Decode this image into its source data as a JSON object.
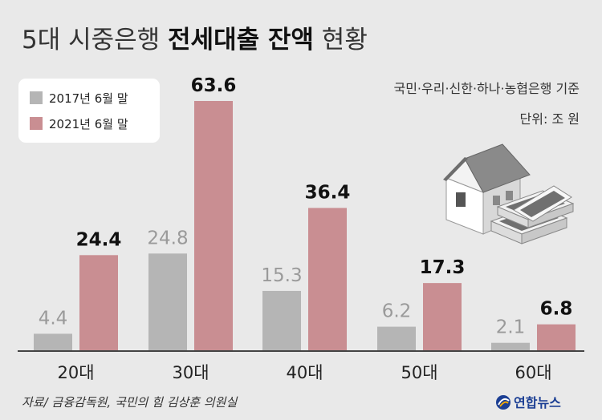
{
  "title": {
    "light_part_1": "5대 시중은행 ",
    "bold_part": "전세대출 잔액",
    "light_part_2": " 현황"
  },
  "note": {
    "banks": "국민·우리·신한·하나·농협은행 기준",
    "unit": "단위: 조 원"
  },
  "legend": {
    "items": [
      {
        "label": "2017년 6월 말",
        "color": "#b5b5b5"
      },
      {
        "label": "2021년 6월 말",
        "color": "#c98e92"
      }
    ]
  },
  "source": "자료/ 금융감독원, 국민의 힘 김상훈 의원실",
  "logo": {
    "text": "연합뉴스",
    "icon": "yonhap-logo-icon"
  },
  "illustration": {
    "icon": "house-and-money-icon"
  },
  "colors": {
    "background": "#e9e9e9",
    "bar_2017": "#b5b5b5",
    "bar_2021": "#c98e92",
    "baseline": "#444444"
  },
  "chart_data": {
    "type": "bar",
    "title": "5대 시중은행 전세대출 잔액 현황",
    "categories": [
      "20대",
      "30대",
      "40대",
      "50대",
      "60대"
    ],
    "series": [
      {
        "name": "2017년 6월 말",
        "values": [
          4.4,
          24.8,
          15.3,
          6.2,
          2.1
        ]
      },
      {
        "name": "2021년 6월 말",
        "values": [
          24.4,
          63.6,
          36.4,
          17.3,
          6.8
        ]
      }
    ],
    "value_labels": {
      "2017년 6월 말": [
        "4.4",
        "24.8",
        "15.3",
        "6.2",
        "2.1"
      ],
      "2021년 6월 말": [
        "24.4",
        "63.6",
        "36.4",
        "17.3",
        "6.8"
      ]
    },
    "unit": "조 원",
    "ylim": [
      0,
      63.6
    ],
    "grid": false,
    "legend_position": "top-left"
  }
}
